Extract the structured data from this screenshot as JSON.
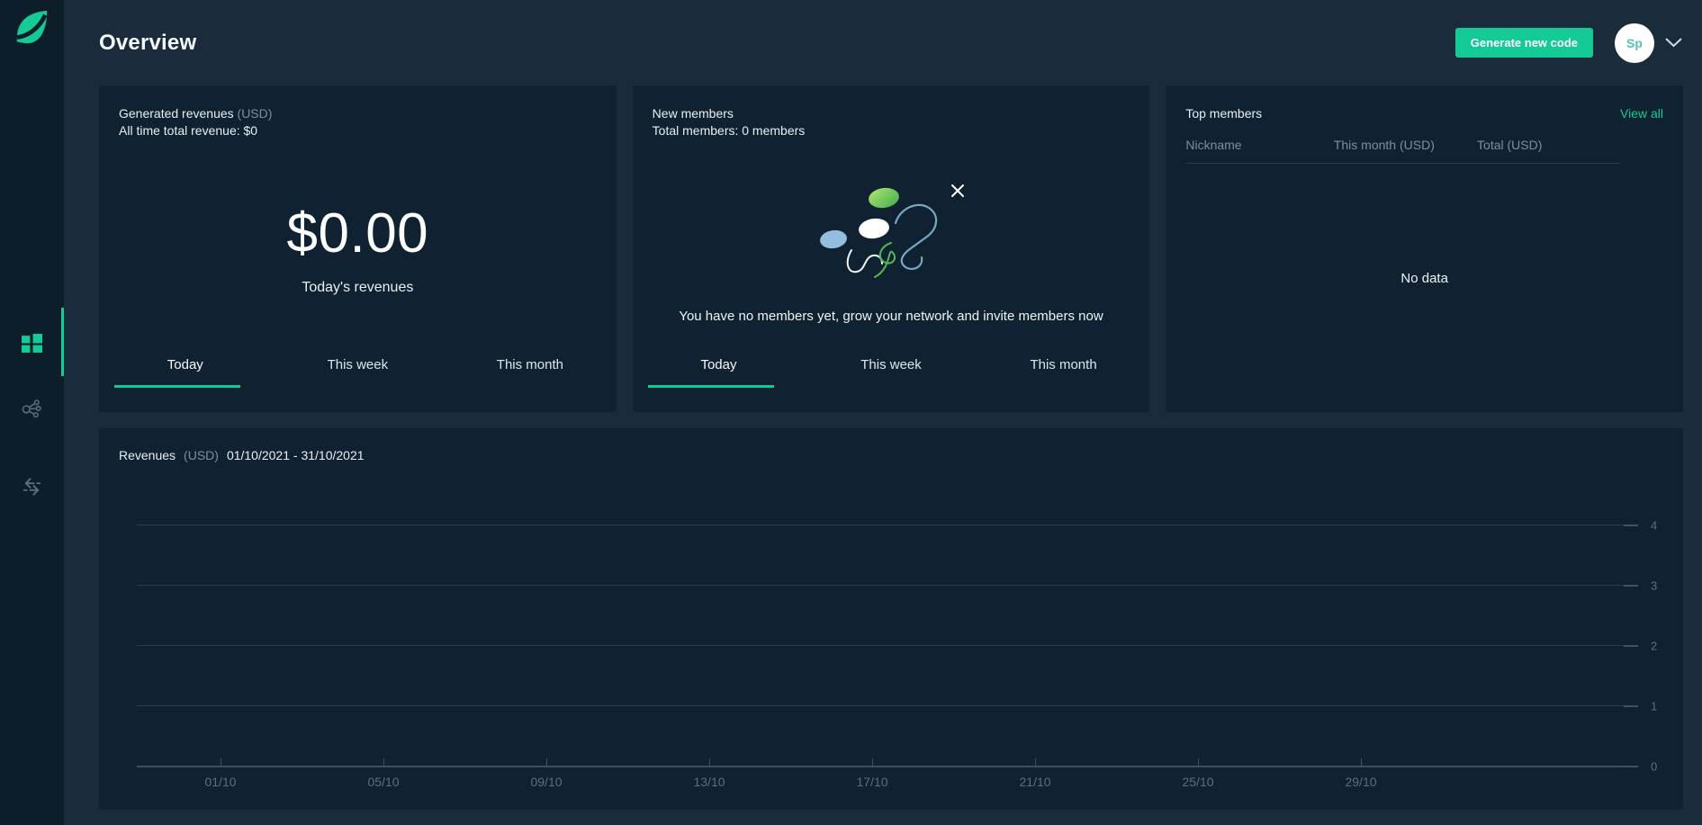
{
  "header": {
    "title": "Overview",
    "generate_button": "Generate new code",
    "avatar_initials": "Sp"
  },
  "sidebar": {
    "items": [
      {
        "id": "dashboard",
        "icon": "dashboard-grid-icon",
        "active": true
      },
      {
        "id": "network",
        "icon": "share-network-icon",
        "active": false
      },
      {
        "id": "transactions",
        "icon": "swap-arrows-icon",
        "active": false
      }
    ]
  },
  "cards": {
    "revenues": {
      "title": "Generated revenues",
      "title_unit": "(USD)",
      "subtitle": "All time total revenue: $0",
      "amount": "$0.00",
      "amount_caption": "Today's revenues",
      "tabs": [
        "Today",
        "This week",
        "This month"
      ],
      "active_tab": 0
    },
    "members": {
      "title": "New members",
      "subtitle": "Total members: 0 members",
      "empty_message": "You have no members yet, grow your network and invite members now",
      "tabs": [
        "Today",
        "This week",
        "This month"
      ],
      "active_tab": 0
    },
    "top_members": {
      "title": "Top members",
      "view_all": "View all",
      "columns": [
        "Nickname",
        "This month (USD)",
        "Total (USD)"
      ],
      "empty": "No data"
    }
  },
  "chart_data": {
    "type": "line",
    "title": "Revenues",
    "title_unit": "(USD)",
    "date_range": "01/10/2021 - 31/10/2021",
    "x_ticks": [
      "01/10",
      "05/10",
      "09/10",
      "13/10",
      "17/10",
      "21/10",
      "25/10",
      "29/10"
    ],
    "y_ticks": [
      0,
      1,
      2,
      3,
      4
    ],
    "ylim": [
      0,
      4
    ],
    "grid": true,
    "series": [],
    "note": "empty chart - no revenue data plotted"
  },
  "colors": {
    "accent_green": "#14ca95",
    "card_bg": "#102231",
    "page_bg": "#1a2c3c",
    "sidebar_bg": "#0d1e2a",
    "muted_text": "#7e8e9a",
    "axis_text": "#5c6f7e"
  }
}
